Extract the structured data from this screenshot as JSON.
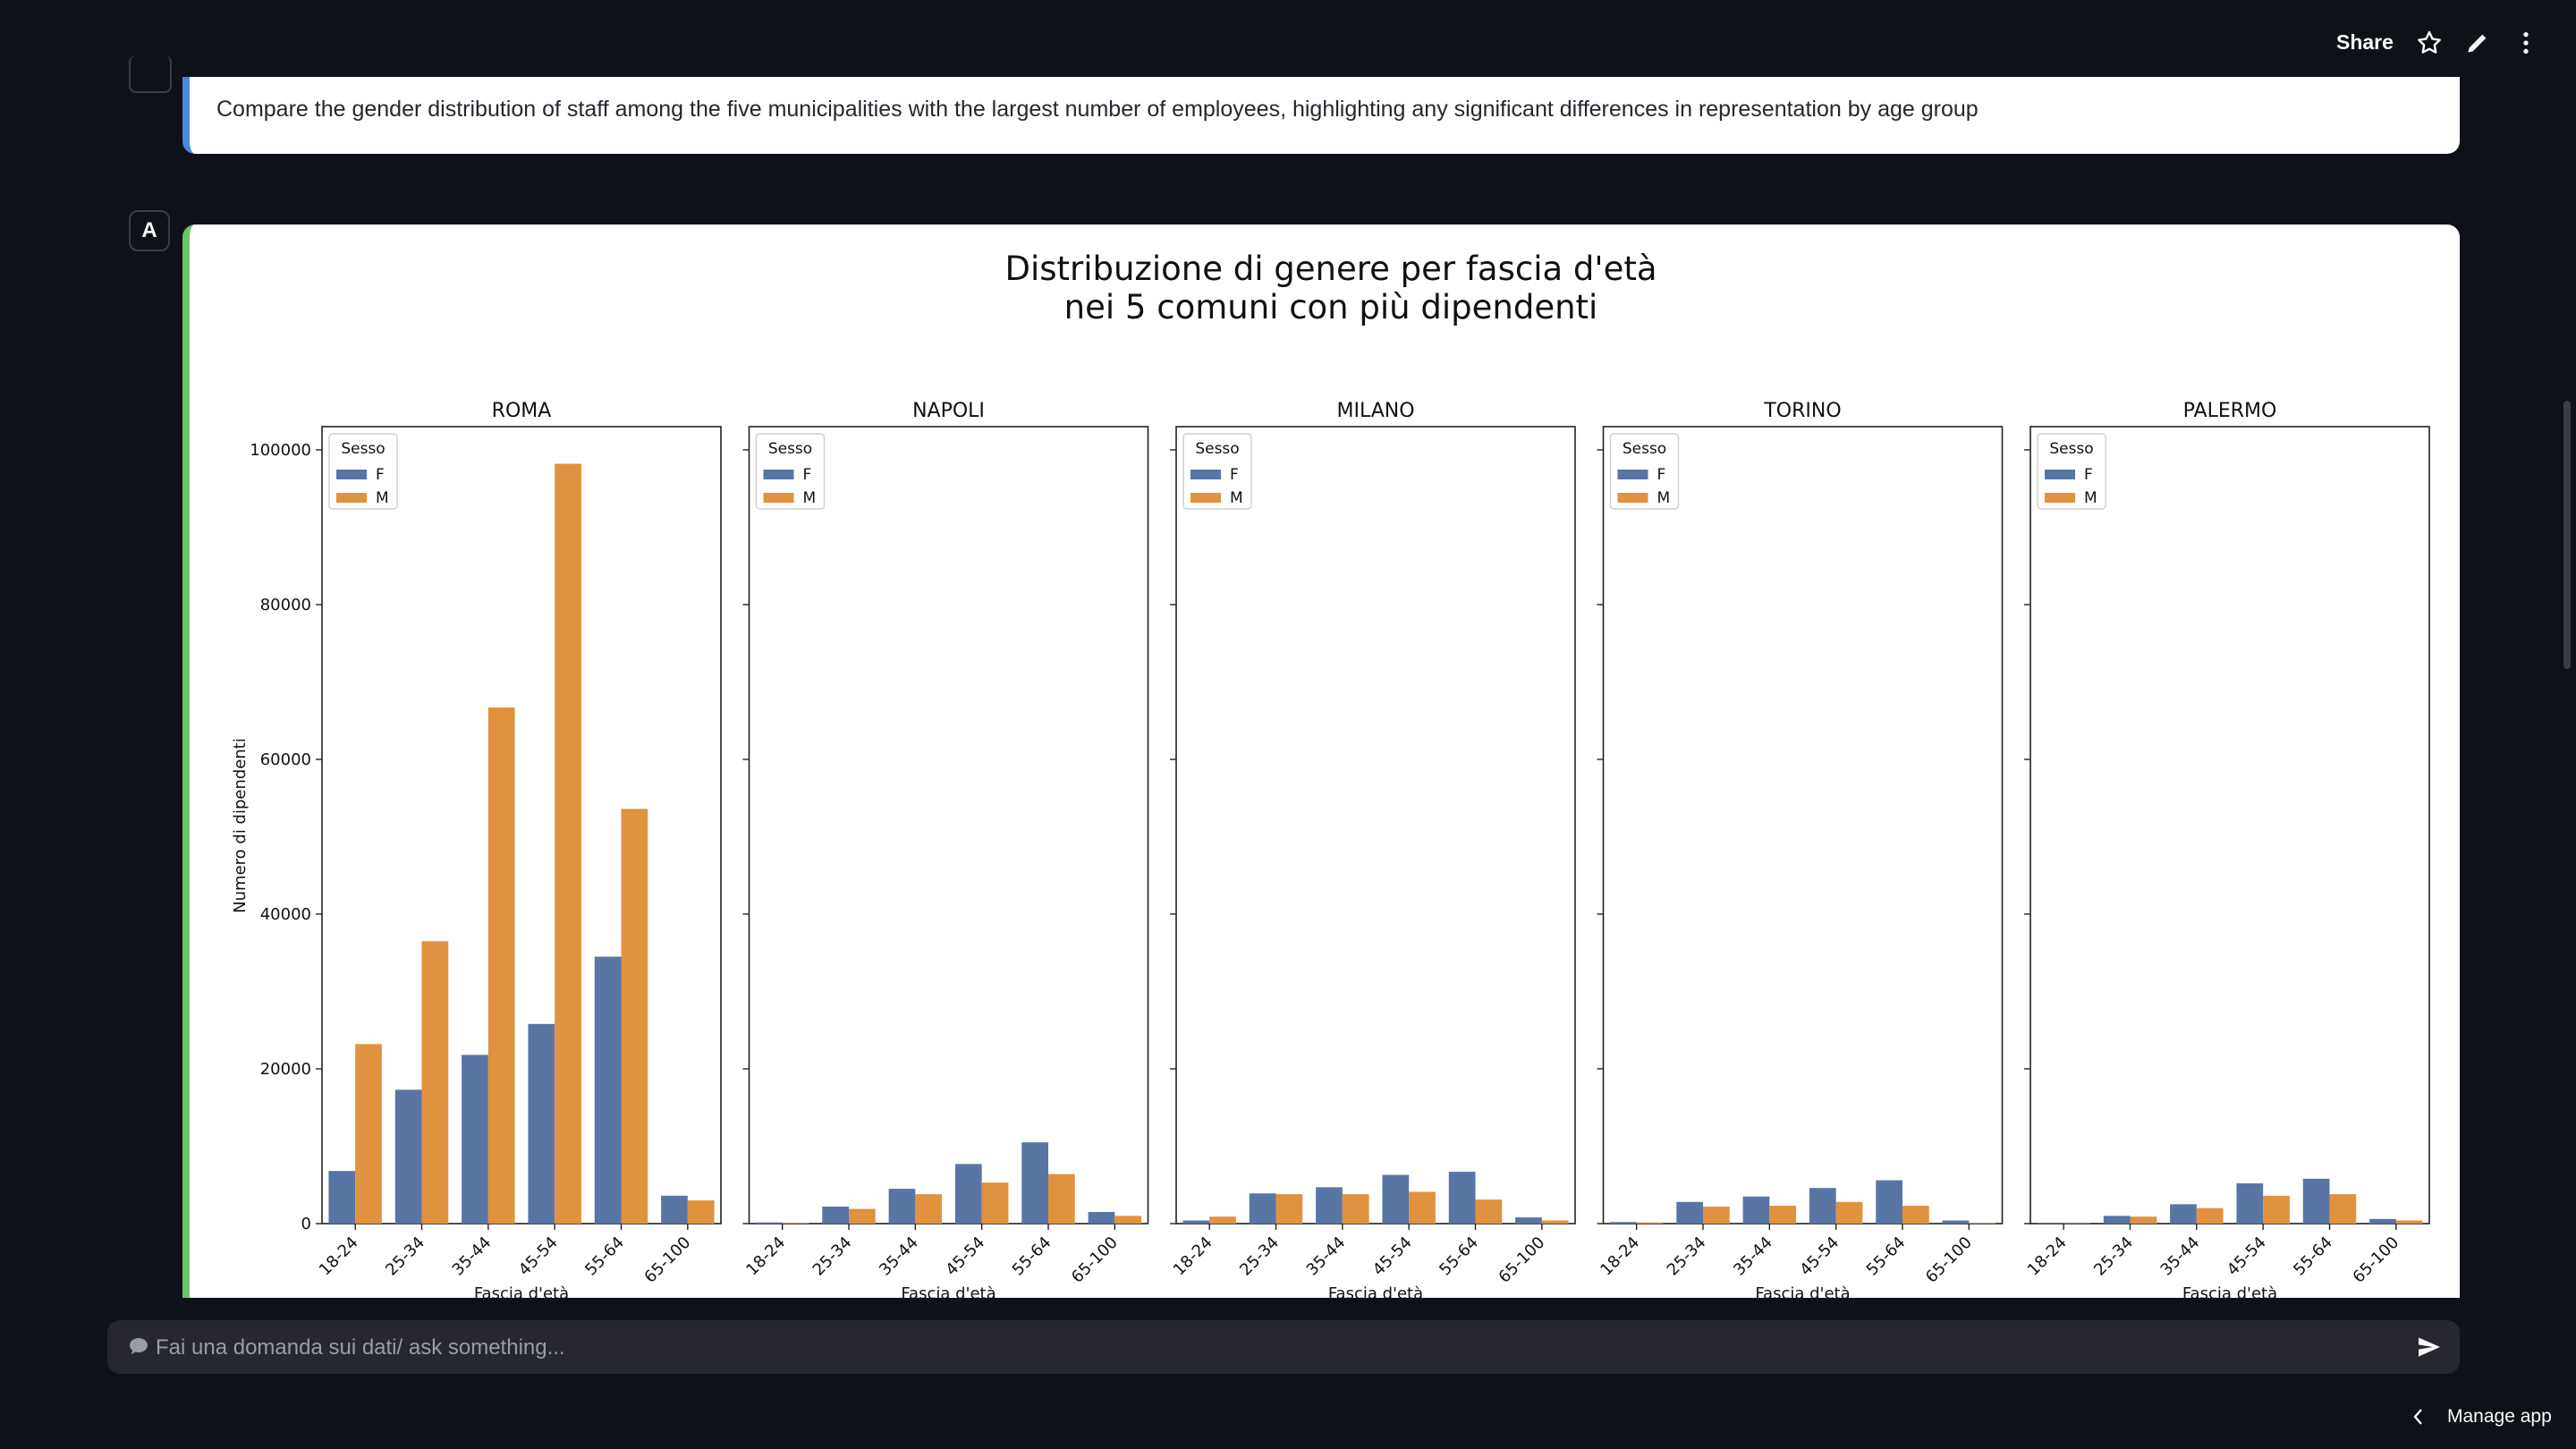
{
  "header": {
    "share_label": "Share"
  },
  "question": {
    "text": "Compare the gender distribution of staff among the five municipalities with the largest number of employees, highlighting any significant differences in representation by age group"
  },
  "answer": {
    "avatar_label": "A"
  },
  "chart_data": {
    "type": "bar",
    "title_line1": "Distribuzione di genere per fascia d'età",
    "title_line2": "nei 5 comuni con più dipendenti",
    "ylabel": "Numero di dipendenti",
    "xlabel": "Fascia d'età",
    "ylim": [
      0,
      103000
    ],
    "yticks": [
      "0",
      "20000",
      "40000",
      "60000",
      "80000",
      "100000"
    ],
    "ytick_values": [
      0,
      20000,
      40000,
      60000,
      80000,
      100000
    ],
    "categories": [
      "18-24",
      "25-34",
      "35-44",
      "45-54",
      "55-64",
      "65-100"
    ],
    "legend_title": "Sesso",
    "legend_placement": "upper-left",
    "series_names": [
      "F",
      "M"
    ],
    "colors": {
      "F": "#5975a4",
      "M": "#e1923e"
    },
    "panels": [
      {
        "title": "ROMA",
        "F": [
          6800,
          17300,
          21800,
          25800,
          34500,
          3600
        ],
        "M": [
          23200,
          36500,
          66700,
          98200,
          53600,
          3000
        ]
      },
      {
        "title": "NAPOLI",
        "F": [
          150,
          2200,
          4500,
          7700,
          10500,
          1500
        ],
        "M": [
          100,
          1900,
          3800,
          5300,
          6400,
          1000
        ]
      },
      {
        "title": "MILANO",
        "F": [
          400,
          3900,
          4700,
          6300,
          6700,
          800
        ],
        "M": [
          900,
          3800,
          3800,
          4100,
          3100,
          400
        ]
      },
      {
        "title": "TORINO",
        "F": [
          200,
          2800,
          3500,
          4600,
          5600,
          400
        ],
        "M": [
          150,
          2200,
          2300,
          2800,
          2300,
          100
        ]
      },
      {
        "title": "PALERMO",
        "F": [
          50,
          1000,
          2500,
          5200,
          5800,
          600
        ],
        "M": [
          50,
          900,
          2000,
          3600,
          3800,
          400
        ]
      }
    ]
  },
  "chat": {
    "placeholder": "Fai una domanda sui dati/ ask something..."
  },
  "footer": {
    "manage_label": "Manage app"
  }
}
